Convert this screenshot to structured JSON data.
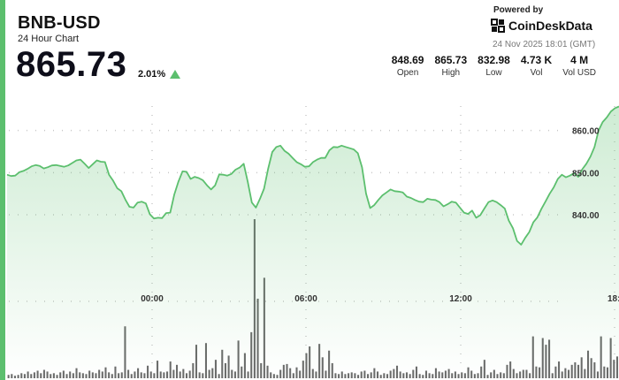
{
  "header": {
    "symbol": "BNB-USD",
    "subtitle": "24 Hour Chart",
    "price": "865.73",
    "change": "2.01%",
    "change_direction": "up-arrow-icon"
  },
  "branding": {
    "powered_by": "Powered by",
    "name": "CoinDeskData",
    "logo_icon": "coindesk-logo-icon",
    "timestamp": "24 Nov 2025 18:01 (GMT)"
  },
  "stats": [
    {
      "value": "848.69",
      "label": "Open"
    },
    {
      "value": "865.73",
      "label": "High"
    },
    {
      "value": "832.98",
      "label": "Low"
    },
    {
      "value": "4.73 K",
      "label": "Vol"
    },
    {
      "value": "4 M",
      "label": "Vol USD"
    }
  ],
  "colors": {
    "accent": "#5cbf6e",
    "line": "#5cbf6e",
    "volume_bar": "#6b6b6b",
    "grid": "#c8c8c8"
  },
  "chart_data": {
    "type": "area",
    "title": "",
    "xlabel": "",
    "ylabel": "",
    "x_ticks": [
      "00:00",
      "06:00",
      "12:00",
      "18:"
    ],
    "y_ticks": [
      860,
      850,
      840
    ],
    "ylim": [
      827,
      870
    ],
    "grid": true,
    "price": [
      849.5,
      849.2,
      849.3,
      850.1,
      850.4,
      850.9,
      851.5,
      851.8,
      851.6,
      851.0,
      851.3,
      851.7,
      851.8,
      851.6,
      851.4,
      851.7,
      852.3,
      852.9,
      853.1,
      852.1,
      851.1,
      852.0,
      852.9,
      852.6,
      852.5,
      849.5,
      848.1,
      846.3,
      845.6,
      843.6,
      841.9,
      841.7,
      842.9,
      843.1,
      842.7,
      840.1,
      839.1,
      839.3,
      839.2,
      840.4,
      840.5,
      844.8,
      847.9,
      850.3,
      850.2,
      848.5,
      849.0,
      848.7,
      848.2,
      847.0,
      846.0,
      847.0,
      849.6,
      849.5,
      849.3,
      849.7,
      850.7,
      851.2,
      852.1,
      847.8,
      842.9,
      841.7,
      843.8,
      846.2,
      851.0,
      854.9,
      856.1,
      856.4,
      855.2,
      854.5,
      853.5,
      852.5,
      852.0,
      851.4,
      851.5,
      852.5,
      853.1,
      853.5,
      853.5,
      855.3,
      856.1,
      856.0,
      856.4,
      856.1,
      855.8,
      855.5,
      854.6,
      851.3,
      845.0,
      841.6,
      842.3,
      843.5,
      844.6,
      845.3,
      846.0,
      845.6,
      845.5,
      845.3,
      844.3,
      844.0,
      843.5,
      843.1,
      843.0,
      843.8,
      843.6,
      843.5,
      843.0,
      842.0,
      842.5,
      843.1,
      842.9,
      841.7,
      840.5,
      840.2,
      841.0,
      839.3,
      839.9,
      841.5,
      843.0,
      843.4,
      843.0,
      842.3,
      841.5,
      838.6,
      836.8,
      833.8,
      832.9,
      834.5,
      835.9,
      838.2,
      839.4,
      841.4,
      843.2,
      845.0,
      846.5,
      848.5,
      849.5,
      848.9,
      849.3,
      849.9,
      849.0,
      850.8,
      852.1,
      853.8,
      856.1,
      860.0,
      862.0,
      863.1,
      864.5,
      865.3,
      865.7
    ],
    "volume": [
      4,
      5,
      3,
      4,
      6,
      5,
      8,
      5,
      7,
      9,
      6,
      10,
      8,
      5,
      6,
      4,
      7,
      9,
      5,
      8,
      6,
      12,
      7,
      6,
      5,
      9,
      7,
      6,
      10,
      8,
      13,
      7,
      5,
      14,
      6,
      7,
      62,
      10,
      5,
      8,
      12,
      7,
      6,
      15,
      8,
      6,
      21,
      8,
      7,
      8,
      20,
      10,
      16,
      8,
      11,
      6,
      9,
      18,
      40,
      7,
      6,
      42,
      10,
      12,
      22,
      5,
      34,
      18,
      27,
      10,
      8,
      45,
      14,
      30,
      8,
      55,
      190,
      95,
      18,
      120,
      15,
      7,
      5,
      4,
      10,
      16,
      17,
      12,
      6,
      13,
      9,
      21,
      30,
      38,
      11,
      8,
      41,
      25,
      9,
      33,
      18,
      6,
      5,
      8,
      5,
      6,
      7,
      6,
      4,
      8,
      9,
      5,
      7,
      12,
      8,
      4,
      6,
      5,
      9,
      11,
      15,
      8,
      6,
      7,
      5,
      10,
      14,
      5,
      4,
      9,
      6,
      5,
      12,
      8,
      7,
      9,
      11,
      6,
      8,
      5,
      7,
      6,
      13,
      9,
      5,
      6,
      14,
      22,
      4,
      7,
      10,
      5,
      7,
      6,
      16,
      20,
      11,
      6,
      8,
      10,
      10,
      6,
      50,
      14,
      13,
      48,
      40,
      46,
      6,
      14,
      20,
      8,
      12,
      10,
      16,
      19,
      16,
      25,
      11,
      33,
      24,
      19,
      8,
      50,
      14,
      13,
      48,
      22,
      26
    ]
  }
}
